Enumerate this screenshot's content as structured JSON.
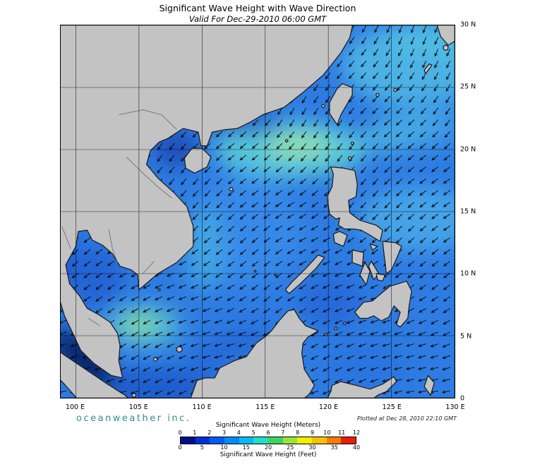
{
  "header": {
    "title": "Significant Wave Height with Wave Direction",
    "subtitle": "Valid For Dec-29-2010 06:00 GMT"
  },
  "axes": {
    "lon_range": [
      98.8,
      130
    ],
    "lat_range": [
      0,
      30
    ],
    "x_ticks": [
      {
        "label": "100 E",
        "lon": 100
      },
      {
        "label": "105 E",
        "lon": 105
      },
      {
        "label": "110 E",
        "lon": 110
      },
      {
        "label": "115 E",
        "lon": 115
      },
      {
        "label": "120 E",
        "lon": 120
      },
      {
        "label": "125 E",
        "lon": 125
      },
      {
        "label": "130 E",
        "lon": 130
      }
    ],
    "y_ticks": [
      {
        "label": "30 N",
        "lat": 30
      },
      {
        "label": "25 N",
        "lat": 25
      },
      {
        "label": "20 N",
        "lat": 20
      },
      {
        "label": "15 N",
        "lat": 15
      },
      {
        "label": "10 N",
        "lat": 10
      },
      {
        "label": "5 N",
        "lat": 5
      },
      {
        "label": "0",
        "lat": 0
      }
    ]
  },
  "legend": {
    "meters_label": "Significant Wave Height (Meters)",
    "feet_label": "Significant Wave Height (Feet)",
    "meters_ticks": [
      0,
      1,
      2,
      3,
      4,
      5,
      6,
      7,
      8,
      9,
      10,
      11,
      12
    ],
    "feet_ticks": [
      0,
      5,
      10,
      15,
      20,
      25,
      30,
      35,
      40
    ],
    "feet_max": 40,
    "segment_colors": [
      "#000f8c",
      "#0031d8",
      "#005cf2",
      "#008cf8",
      "#00bcf4",
      "#22dcc8",
      "#3ed262",
      "#9ce23c",
      "#f2ee00",
      "#f8c200",
      "#f87c00",
      "#e81e00"
    ]
  },
  "footer": {
    "credit": "oceanweather inc.",
    "plotted": "Plotted at Dec 28, 2010 22:10 GMT"
  },
  "chart_data": {
    "type": "map",
    "field": "significant_wave_height_with_direction",
    "valid_time": "Dec-29-2010 06:00 GMT",
    "region": {
      "lon": [
        98.8,
        130
      ],
      "lat": [
        0,
        30
      ]
    },
    "scale_meters": [
      0,
      12
    ],
    "scale_feet": [
      0,
      40
    ],
    "arrows": {
      "spacing_deg": 0.95,
      "length_deg": 0.62,
      "color": "#000000"
    }
  }
}
